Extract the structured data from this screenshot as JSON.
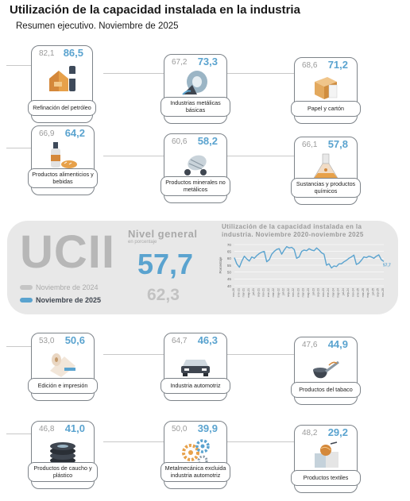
{
  "header": {
    "title": "Utilización de la capacidad instalada en la industria",
    "subtitle": "Resumen ejecutivo. Noviembre de 2025"
  },
  "colors": {
    "new": "#5aa3cf",
    "old": "#b7b7b7",
    "panel": "#e8e8e8",
    "card_border": "#7d8389"
  },
  "cards": [
    {
      "label": "Refinación del petróleo",
      "old": "82,1",
      "new": "86,5",
      "icon": "refinery-icon"
    },
    {
      "label": "Industrias metálicas básicas",
      "old": "67,2",
      "new": "73,3",
      "icon": "metal-coil-icon"
    },
    {
      "label": "Papel y cartón",
      "old": "68,6",
      "new": "71,2",
      "icon": "cardboard-box-icon"
    },
    {
      "label": "Productos alimenticios y bebidas",
      "old": "66,9",
      "new": "64,2",
      "icon": "bottle-bread-icon"
    },
    {
      "label": "Productos minerales no metálicos",
      "old": "60,6",
      "new": "58,2",
      "icon": "cement-mixer-icon"
    },
    {
      "label": "Sustancias y productos químicos",
      "old": "66,1",
      "new": "57,8",
      "icon": "flask-icon"
    },
    {
      "label": "Edición e impresión",
      "old": "53,0",
      "new": "50,6",
      "icon": "paper-roll-icon"
    },
    {
      "label": "Industria automotriz",
      "old": "64,7",
      "new": "46,3",
      "icon": "car-icon"
    },
    {
      "label": "Productos del tabaco",
      "old": "47,6",
      "new": "44,9",
      "icon": "tobacco-pipe-icon"
    },
    {
      "label": "Productos de caucho y plástico",
      "old": "46,8",
      "new": "41,0",
      "icon": "tire-stack-icon"
    },
    {
      "label": "Metalmecánica excluida industria automotriz",
      "old": "50,0",
      "new": "39,9",
      "icon": "gears-icon"
    },
    {
      "label": "Productos textiles",
      "old": "48,2",
      "new": "29,2",
      "icon": "yarn-icon"
    }
  ],
  "summary": {
    "brand": "UCII",
    "legend_old": "Noviembre de 2024",
    "legend_new": "Noviembre de 2025",
    "nivel_title": "Nivel general",
    "nivel_unit": "en porcentaje",
    "nivel_new": "57,7",
    "nivel_old": "62,3"
  },
  "chart_data": {
    "type": "line",
    "title": "Utilización de la capacidad instalada en la industria. Noviembre 2020-noviembre 2025",
    "ylabel": "Porcentaje",
    "ylim": [
      40,
      70
    ],
    "yticks": [
      40,
      45,
      50,
      55,
      60,
      65,
      70
    ],
    "last_label": "57,7",
    "x": [
      "nov-20",
      "dic-20",
      "ene-21",
      "feb-21",
      "mar-21",
      "abr-21",
      "may-21",
      "jun-21",
      "jul-21",
      "ago-21",
      "sep-21",
      "oct-21",
      "nov-21",
      "dic-21",
      "ene-22",
      "feb-22",
      "mar-22",
      "abr-22",
      "may-22",
      "jun-22",
      "jul-22",
      "ago-22",
      "sep-22",
      "oct-22",
      "nov-22",
      "dic-22",
      "ene-23",
      "feb-23",
      "mar-23",
      "abr-23",
      "may-23",
      "jun-23",
      "jul-23",
      "ago-23",
      "sep-23",
      "oct-23",
      "nov-23",
      "dic-23",
      "ene-24",
      "feb-24",
      "mar-24",
      "abr-24",
      "may-24",
      "jun-24",
      "jul-24",
      "ago-24",
      "sep-24",
      "oct-24",
      "nov-24",
      "dic-24",
      "ene-25",
      "feb-25",
      "mar-25",
      "abr-25",
      "may-25",
      "jun-25",
      "jul-25",
      "ago-25",
      "sep-25",
      "oct-25",
      "nov-25"
    ],
    "series": [
      {
        "values": [
          60.5,
          55.8,
          53.5,
          58.0,
          61.5,
          59.5,
          58.0,
          61.0,
          60.0,
          62.0,
          63.5,
          64.5,
          65.0,
          57.5,
          59.0,
          63.0,
          65.0,
          66.5,
          67.0,
          63.0,
          66.0,
          68.5,
          67.5,
          68.0,
          66.5,
          60.0,
          61.0,
          65.0,
          66.0,
          65.5,
          67.0,
          66.0,
          65.5,
          67.5,
          66.0,
          64.0,
          63.0,
          55.0,
          56.0,
          53.0,
          54.5,
          54.0,
          56.0,
          56.0,
          57.5,
          58.5,
          60.0,
          61.0,
          62.3,
          55.5,
          56.5,
          58.5,
          61.0,
          60.5,
          61.5,
          61.0,
          60.0,
          61.5,
          62.5,
          59.0,
          57.7
        ]
      }
    ]
  }
}
